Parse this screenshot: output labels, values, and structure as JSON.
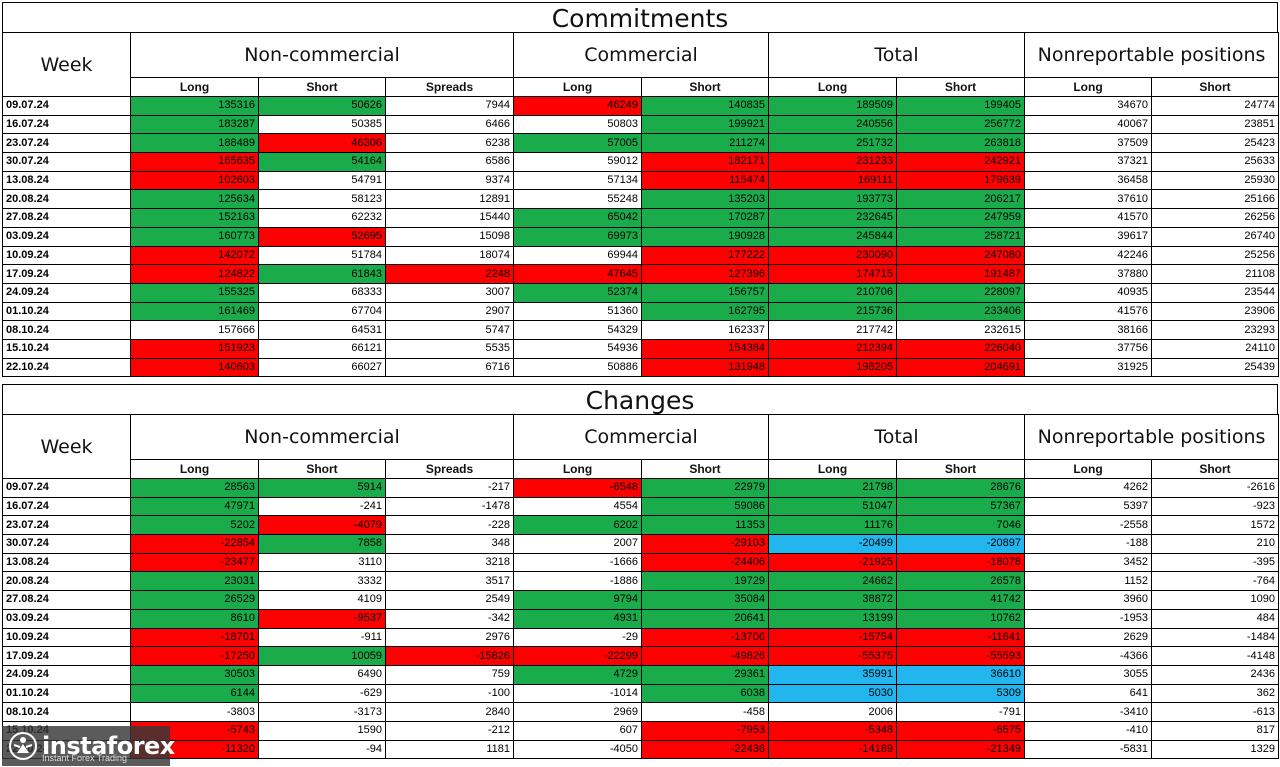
{
  "commitments": {
    "title": "Commitments",
    "week_label": "Week",
    "groups": [
      "Non-commercial",
      "Commercial",
      "Total",
      "Nonreportable positions"
    ],
    "subheaders": [
      "Long",
      "Short",
      "Spreads",
      "Long",
      "Short",
      "Long",
      "Short",
      "Long",
      "Short"
    ],
    "rows": [
      {
        "week": "09.07.24",
        "values": [
          "135316",
          "50626",
          "7944",
          "46249",
          "140835",
          "189509",
          "199405",
          "34670",
          "24774"
        ],
        "colors": [
          "g",
          "g",
          "",
          "r",
          "g",
          "g",
          "g",
          "",
          ""
        ]
      },
      {
        "week": "16.07.24",
        "values": [
          "183287",
          "50385",
          "6466",
          "50803",
          "199921",
          "240556",
          "256772",
          "40067",
          "23851"
        ],
        "colors": [
          "g",
          "",
          "",
          "",
          "g",
          "g",
          "g",
          "",
          ""
        ]
      },
      {
        "week": "23.07.24",
        "values": [
          "188489",
          "46306",
          "6238",
          "57005",
          "211274",
          "251732",
          "263818",
          "37509",
          "25423"
        ],
        "colors": [
          "g",
          "r",
          "",
          "g",
          "g",
          "g",
          "g",
          "",
          ""
        ]
      },
      {
        "week": "30.07.24",
        "values": [
          "165635",
          "54164",
          "6586",
          "59012",
          "182171",
          "231233",
          "242921",
          "37321",
          "25633"
        ],
        "colors": [
          "r",
          "g",
          "",
          "",
          "r",
          "r",
          "r",
          "",
          ""
        ]
      },
      {
        "week": "13.08.24",
        "values": [
          "102603",
          "54791",
          "9374",
          "57134",
          "115474",
          "169111",
          "179639",
          "36458",
          "25930"
        ],
        "colors": [
          "r",
          "",
          "",
          "",
          "r",
          "r",
          "r",
          "",
          ""
        ]
      },
      {
        "week": "20.08.24",
        "values": [
          "125634",
          "58123",
          "12891",
          "55248",
          "135203",
          "193773",
          "206217",
          "37610",
          "25166"
        ],
        "colors": [
          "g",
          "",
          "",
          "",
          "g",
          "g",
          "g",
          "",
          ""
        ]
      },
      {
        "week": "27.08.24",
        "values": [
          "152163",
          "62232",
          "15440",
          "65042",
          "170287",
          "232645",
          "247959",
          "41570",
          "26256"
        ],
        "colors": [
          "g",
          "",
          "",
          "g",
          "g",
          "g",
          "g",
          "",
          ""
        ]
      },
      {
        "week": "03.09.24",
        "values": [
          "160773",
          "52695",
          "15098",
          "69973",
          "190928",
          "245844",
          "258721",
          "39617",
          "26740"
        ],
        "colors": [
          "g",
          "r",
          "",
          "g",
          "g",
          "g",
          "g",
          "",
          ""
        ]
      },
      {
        "week": "10.09.24",
        "values": [
          "142072",
          "51784",
          "18074",
          "69944",
          "177222",
          "230090",
          "247080",
          "42246",
          "25256"
        ],
        "colors": [
          "r",
          "",
          "",
          "",
          "r",
          "r",
          "r",
          "",
          ""
        ]
      },
      {
        "week": "17.09.24",
        "values": [
          "124822",
          "61843",
          "2248",
          "47645",
          "127396",
          "174715",
          "191487",
          "37880",
          "21108"
        ],
        "colors": [
          "r",
          "g",
          "r",
          "r",
          "r",
          "r",
          "r",
          "",
          ""
        ]
      },
      {
        "week": "24.09.24",
        "values": [
          "155325",
          "68333",
          "3007",
          "52374",
          "156757",
          "210706",
          "228097",
          "40935",
          "23544"
        ],
        "colors": [
          "g",
          "",
          "",
          "g",
          "g",
          "g",
          "g",
          "",
          ""
        ]
      },
      {
        "week": "01.10.24",
        "values": [
          "161469",
          "67704",
          "2907",
          "51360",
          "162795",
          "215736",
          "233406",
          "41576",
          "23906"
        ],
        "colors": [
          "g",
          "",
          "",
          "",
          "g",
          "g",
          "g",
          "",
          ""
        ]
      },
      {
        "week": "08.10.24",
        "values": [
          "157666",
          "64531",
          "5747",
          "54329",
          "162337",
          "217742",
          "232615",
          "38166",
          "23293"
        ],
        "colors": [
          "",
          "",
          "",
          "",
          "",
          "",
          "",
          "",
          ""
        ]
      },
      {
        "week": "15.10.24",
        "values": [
          "151923",
          "66121",
          "5535",
          "54936",
          "154384",
          "212394",
          "226040",
          "37756",
          "24110"
        ],
        "colors": [
          "r",
          "",
          "",
          "",
          "r",
          "r",
          "r",
          "",
          ""
        ]
      },
      {
        "week": "22.10.24",
        "values": [
          "140603",
          "66027",
          "6716",
          "50886",
          "131948",
          "198205",
          "204691",
          "31925",
          "25439"
        ],
        "colors": [
          "r",
          "",
          "",
          "",
          "r",
          "r",
          "r",
          "",
          ""
        ]
      }
    ]
  },
  "changes": {
    "title": "Changes",
    "week_label": "Week",
    "groups": [
      "Non-commercial",
      "Commercial",
      "Total",
      "Nonreportable positions"
    ],
    "subheaders": [
      "Long",
      "Short",
      "Spreads",
      "Long",
      "Short",
      "Long",
      "Short",
      "Long",
      "Short"
    ],
    "rows": [
      {
        "week": "09.07.24",
        "values": [
          "28563",
          "5914",
          "-217",
          "-6548",
          "22979",
          "21798",
          "28676",
          "4262",
          "-2616"
        ],
        "colors": [
          "g",
          "g",
          "",
          "r",
          "g",
          "g",
          "g",
          "",
          ""
        ]
      },
      {
        "week": "16.07.24",
        "values": [
          "47971",
          "-241",
          "-1478",
          "4554",
          "59086",
          "51047",
          "57367",
          "5397",
          "-923"
        ],
        "colors": [
          "g",
          "",
          "",
          "",
          "g",
          "g",
          "g",
          "",
          ""
        ]
      },
      {
        "week": "23.07.24",
        "values": [
          "5202",
          "-4079",
          "-228",
          "6202",
          "11353",
          "11176",
          "7046",
          "-2558",
          "1572"
        ],
        "colors": [
          "g",
          "r",
          "",
          "g",
          "g",
          "g",
          "g",
          "",
          ""
        ]
      },
      {
        "week": "30.07.24",
        "values": [
          "-22854",
          "7858",
          "348",
          "2007",
          "-29103",
          "-20499",
          "-20897",
          "-188",
          "210"
        ],
        "colors": [
          "r",
          "g",
          "",
          "",
          "r",
          "b",
          "b",
          "",
          ""
        ]
      },
      {
        "week": "13.08.24",
        "values": [
          "-23477",
          "3110",
          "3218",
          "-1666",
          "-24406",
          "-21925",
          "-18078",
          "3452",
          "-395"
        ],
        "colors": [
          "r",
          "",
          "",
          "",
          "r",
          "r",
          "r",
          "",
          ""
        ]
      },
      {
        "week": "20.08.24",
        "values": [
          "23031",
          "3332",
          "3517",
          "-1886",
          "19729",
          "24662",
          "26578",
          "1152",
          "-764"
        ],
        "colors": [
          "g",
          "",
          "",
          "",
          "g",
          "g",
          "g",
          "",
          ""
        ]
      },
      {
        "week": "27.08.24",
        "values": [
          "26529",
          "4109",
          "2549",
          "9794",
          "35084",
          "38872",
          "41742",
          "3960",
          "1090"
        ],
        "colors": [
          "g",
          "",
          "",
          "g",
          "g",
          "g",
          "g",
          "",
          ""
        ]
      },
      {
        "week": "03.09.24",
        "values": [
          "8610",
          "-9537",
          "-342",
          "4931",
          "20641",
          "13199",
          "10762",
          "-1953",
          "484"
        ],
        "colors": [
          "g",
          "r",
          "",
          "g",
          "g",
          "g",
          "g",
          "",
          ""
        ]
      },
      {
        "week": "10.09.24",
        "values": [
          "-18701",
          "-911",
          "2976",
          "-29",
          "-13706",
          "-15754",
          "-11641",
          "2629",
          "-1484"
        ],
        "colors": [
          "r",
          "",
          "",
          "",
          "r",
          "r",
          "r",
          "",
          ""
        ]
      },
      {
        "week": "17.09.24",
        "values": [
          "-17250",
          "10059",
          "-15826",
          "-22299",
          "-49826",
          "-55375",
          "-55593",
          "-4366",
          "-4148"
        ],
        "colors": [
          "r",
          "g",
          "r",
          "r",
          "r",
          "r",
          "r",
          "",
          ""
        ]
      },
      {
        "week": "24.09.24",
        "values": [
          "30503",
          "6490",
          "759",
          "4729",
          "29361",
          "35991",
          "36610",
          "3055",
          "2436"
        ],
        "colors": [
          "g",
          "",
          "",
          "g",
          "g",
          "b",
          "b",
          "",
          ""
        ]
      },
      {
        "week": "01.10.24",
        "values": [
          "6144",
          "-629",
          "-100",
          "-1014",
          "6038",
          "5030",
          "5309",
          "641",
          "362"
        ],
        "colors": [
          "g",
          "",
          "",
          "",
          "g",
          "b",
          "b",
          "",
          ""
        ]
      },
      {
        "week": "08.10.24",
        "values": [
          "-3803",
          "-3173",
          "2840",
          "2969",
          "-458",
          "2006",
          "-791",
          "-3410",
          "-613"
        ],
        "colors": [
          "",
          "",
          "",
          "",
          "",
          "",
          "",
          "",
          ""
        ]
      },
      {
        "week": "15.10.24",
        "values": [
          "-5743",
          "1590",
          "-212",
          "607",
          "-7953",
          "-5348",
          "-6575",
          "-410",
          "817"
        ],
        "colors": [
          "r",
          "",
          "",
          "",
          "r",
          "r",
          "r",
          "",
          ""
        ]
      },
      {
        "week": "22.10.24",
        "values": [
          "-11320",
          "-94",
          "1181",
          "-4050",
          "-22436",
          "-14189",
          "-21349",
          "-5831",
          "1329"
        ],
        "colors": [
          "r",
          "",
          "",
          "",
          "r",
          "r",
          "r",
          "",
          ""
        ]
      }
    ]
  },
  "watermark": {
    "brand": "instaforex",
    "tagline": "Instant Forex Trading",
    "icon": "instaforex-logo-icon"
  }
}
